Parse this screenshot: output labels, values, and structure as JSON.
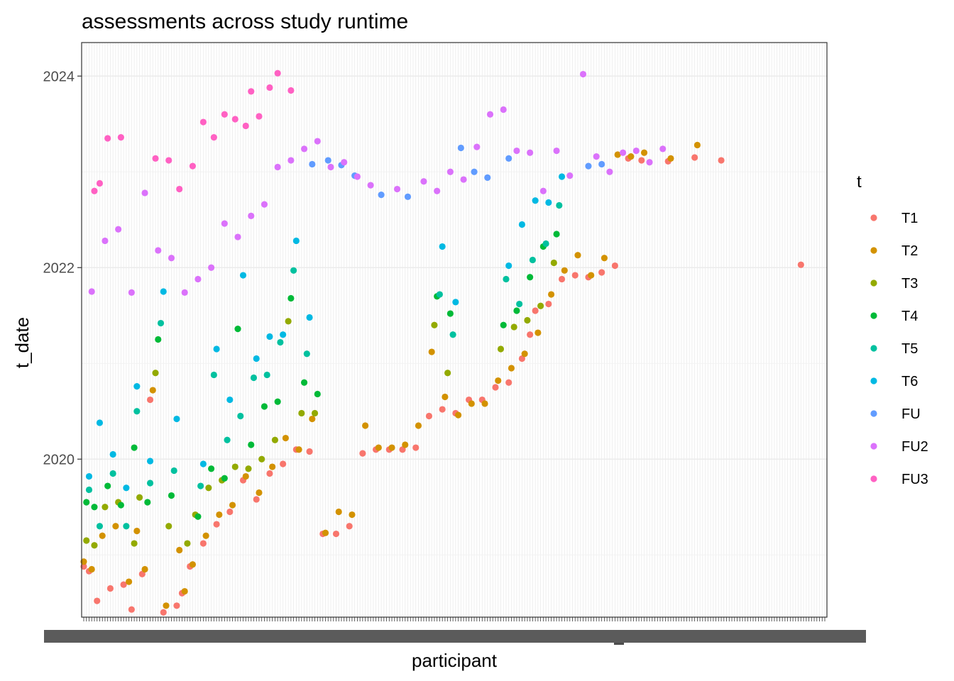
{
  "chart_data": {
    "type": "scatter",
    "title": "assessments across study runtime",
    "xlabel": "participant",
    "ylabel": "t_date",
    "y_ticks": [
      "2020",
      "2022",
      "2024"
    ],
    "y_tick_values": [
      2020,
      2022,
      2024
    ],
    "ylim": [
      2018.35,
      2024.35
    ],
    "x_axis_labels_overlapping": true,
    "x_count": 170,
    "grid": true,
    "legend": {
      "title": "t",
      "placement": "right",
      "entries": [
        {
          "name": "T1",
          "color": "#F8766D"
        },
        {
          "name": "T2",
          "color": "#D39200"
        },
        {
          "name": "T3",
          "color": "#93AA00"
        },
        {
          "name": "T4",
          "color": "#00BA38"
        },
        {
          "name": "T5",
          "color": "#00C19F"
        },
        {
          "name": "T6",
          "color": "#00B9E3"
        },
        {
          "name": "FU",
          "color": "#619CFF"
        },
        {
          "name": "FU2",
          "color": "#DB72FB"
        },
        {
          "name": "FU3",
          "color": "#FF61C3"
        }
      ]
    },
    "series": [
      {
        "name": "T1",
        "points": [
          [
            0,
            2018.88
          ],
          [
            2,
            2018.83
          ],
          [
            5,
            2018.52
          ],
          [
            10,
            2018.65
          ],
          [
            15,
            2018.69
          ],
          [
            18,
            2018.43
          ],
          [
            22,
            2018.8
          ],
          [
            25,
            2020.62
          ],
          [
            30,
            2018.4
          ],
          [
            35,
            2018.47
          ],
          [
            37,
            2018.6
          ],
          [
            40,
            2018.88
          ],
          [
            45,
            2019.12
          ],
          [
            50,
            2019.32
          ],
          [
            55,
            2019.45
          ],
          [
            60,
            2019.78
          ],
          [
            65,
            2019.58
          ],
          [
            70,
            2019.85
          ],
          [
            75,
            2019.95
          ],
          [
            80,
            2020.1
          ],
          [
            85,
            2020.08
          ],
          [
            90,
            2019.22
          ],
          [
            95,
            2019.22
          ],
          [
            100,
            2019.3
          ],
          [
            105,
            2020.06
          ],
          [
            110,
            2020.1
          ],
          [
            115,
            2020.1
          ],
          [
            120,
            2020.1
          ],
          [
            125,
            2020.12
          ],
          [
            130,
            2020.45
          ],
          [
            135,
            2020.52
          ],
          [
            140,
            2020.48
          ],
          [
            145,
            2020.62
          ],
          [
            150,
            2020.62
          ],
          [
            155,
            2020.75
          ],
          [
            160,
            2020.8
          ],
          [
            165,
            2021.05
          ],
          [
            168,
            2021.3
          ],
          [
            170,
            2021.55
          ],
          [
            175,
            2021.62
          ],
          [
            180,
            2021.88
          ],
          [
            185,
            2021.92
          ],
          [
            190,
            2021.9
          ],
          [
            195,
            2021.95
          ],
          [
            200,
            2022.02
          ],
          [
            205,
            2023.14
          ],
          [
            210,
            2023.12
          ],
          [
            220,
            2023.11
          ],
          [
            230,
            2023.15
          ],
          [
            240,
            2023.12
          ],
          [
            270,
            2022.03
          ]
        ]
      },
      {
        "name": "T2",
        "points": [
          [
            0,
            2018.93
          ],
          [
            3,
            2018.85
          ],
          [
            7,
            2019.2
          ],
          [
            12,
            2019.3
          ],
          [
            17,
            2018.72
          ],
          [
            20,
            2019.25
          ],
          [
            23,
            2018.85
          ],
          [
            26,
            2020.72
          ],
          [
            31,
            2018.47
          ],
          [
            36,
            2019.05
          ],
          [
            38,
            2018.62
          ],
          [
            41,
            2018.9
          ],
          [
            46,
            2019.2
          ],
          [
            51,
            2019.42
          ],
          [
            56,
            2019.52
          ],
          [
            61,
            2019.82
          ],
          [
            66,
            2019.65
          ],
          [
            71,
            2019.92
          ],
          [
            76,
            2020.22
          ],
          [
            81,
            2020.1
          ],
          [
            86,
            2020.42
          ],
          [
            91,
            2019.23
          ],
          [
            96,
            2019.45
          ],
          [
            101,
            2019.42
          ],
          [
            106,
            2020.35
          ],
          [
            111,
            2020.12
          ],
          [
            116,
            2020.12
          ],
          [
            121,
            2020.15
          ],
          [
            126,
            2020.35
          ],
          [
            131,
            2021.12
          ],
          [
            136,
            2020.65
          ],
          [
            141,
            2020.46
          ],
          [
            146,
            2020.58
          ],
          [
            151,
            2020.58
          ],
          [
            156,
            2020.82
          ],
          [
            161,
            2020.95
          ],
          [
            166,
            2021.1
          ],
          [
            171,
            2021.32
          ],
          [
            176,
            2021.72
          ],
          [
            181,
            2021.97
          ],
          [
            186,
            2022.13
          ],
          [
            191,
            2021.92
          ],
          [
            196,
            2022.1
          ],
          [
            201,
            2023.18
          ],
          [
            206,
            2023.16
          ],
          [
            211,
            2023.2
          ],
          [
            221,
            2023.14
          ],
          [
            231,
            2023.28
          ]
        ]
      },
      {
        "name": "T3",
        "points": [
          [
            1,
            2019.15
          ],
          [
            4,
            2019.1
          ],
          [
            8,
            2019.5
          ],
          [
            13,
            2019.55
          ],
          [
            19,
            2019.12
          ],
          [
            21,
            2019.6
          ],
          [
            27,
            2020.9
          ],
          [
            32,
            2019.3
          ],
          [
            39,
            2019.12
          ],
          [
            42,
            2019.42
          ],
          [
            47,
            2019.7
          ],
          [
            52,
            2019.78
          ],
          [
            57,
            2019.92
          ],
          [
            62,
            2019.9
          ],
          [
            67,
            2020.0
          ],
          [
            72,
            2020.2
          ],
          [
            77,
            2021.44
          ],
          [
            82,
            2020.48
          ],
          [
            87,
            2020.48
          ],
          [
            132,
            2021.4
          ],
          [
            137,
            2020.9
          ],
          [
            157,
            2021.15
          ],
          [
            162,
            2021.38
          ],
          [
            167,
            2021.45
          ],
          [
            172,
            2021.6
          ],
          [
            177,
            2022.05
          ]
        ]
      },
      {
        "name": "T4",
        "points": [
          [
            1,
            2019.55
          ],
          [
            4,
            2019.5
          ],
          [
            9,
            2019.72
          ],
          [
            14,
            2019.52
          ],
          [
            19,
            2020.12
          ],
          [
            24,
            2019.55
          ],
          [
            28,
            2021.25
          ],
          [
            33,
            2019.62
          ],
          [
            43,
            2019.4
          ],
          [
            48,
            2019.9
          ],
          [
            53,
            2019.8
          ],
          [
            58,
            2021.36
          ],
          [
            63,
            2020.15
          ],
          [
            68,
            2020.55
          ],
          [
            73,
            2020.6
          ],
          [
            78,
            2021.68
          ],
          [
            83,
            2020.8
          ],
          [
            88,
            2020.68
          ],
          [
            133,
            2021.7
          ],
          [
            138,
            2021.52
          ],
          [
            158,
            2021.4
          ],
          [
            163,
            2021.55
          ],
          [
            168,
            2021.9
          ],
          [
            173,
            2022.22
          ],
          [
            178,
            2022.35
          ]
        ]
      },
      {
        "name": "T5",
        "points": [
          [
            2,
            2019.68
          ],
          [
            6,
            2019.3
          ],
          [
            11,
            2019.85
          ],
          [
            16,
            2019.3
          ],
          [
            20,
            2020.5
          ],
          [
            25,
            2019.75
          ],
          [
            29,
            2021.42
          ],
          [
            34,
            2019.88
          ],
          [
            44,
            2019.72
          ],
          [
            49,
            2020.88
          ],
          [
            54,
            2020.2
          ],
          [
            59,
            2020.45
          ],
          [
            64,
            2020.85
          ],
          [
            69,
            2020.88
          ],
          [
            74,
            2021.22
          ],
          [
            79,
            2021.97
          ],
          [
            84,
            2021.1
          ],
          [
            134,
            2021.72
          ],
          [
            139,
            2021.3
          ],
          [
            159,
            2021.88
          ],
          [
            164,
            2021.62
          ],
          [
            169,
            2022.08
          ],
          [
            174,
            2022.25
          ],
          [
            179,
            2022.65
          ]
        ]
      },
      {
        "name": "T6",
        "points": [
          [
            2,
            2019.82
          ],
          [
            6,
            2020.38
          ],
          [
            11,
            2020.05
          ],
          [
            16,
            2019.7
          ],
          [
            20,
            2020.76
          ],
          [
            25,
            2019.98
          ],
          [
            30,
            2021.75
          ],
          [
            35,
            2020.42
          ],
          [
            45,
            2019.95
          ],
          [
            50,
            2021.15
          ],
          [
            55,
            2020.62
          ],
          [
            60,
            2021.92
          ],
          [
            65,
            2021.05
          ],
          [
            70,
            2021.28
          ],
          [
            75,
            2021.3
          ],
          [
            80,
            2022.28
          ],
          [
            85,
            2021.48
          ],
          [
            135,
            2022.22
          ],
          [
            140,
            2021.64
          ],
          [
            160,
            2022.02
          ],
          [
            165,
            2022.45
          ],
          [
            170,
            2022.7
          ],
          [
            175,
            2022.68
          ],
          [
            180,
            2022.95
          ]
        ]
      },
      {
        "name": "FU",
        "points": [
          [
            86,
            2023.08
          ],
          [
            92,
            2023.12
          ],
          [
            97,
            2023.07
          ],
          [
            102,
            2022.96
          ],
          [
            112,
            2022.76
          ],
          [
            122,
            2022.74
          ],
          [
            142,
            2023.25
          ],
          [
            147,
            2023.0
          ],
          [
            152,
            2022.94
          ],
          [
            160,
            2023.14
          ],
          [
            190,
            2023.06
          ],
          [
            195,
            2023.08
          ]
        ]
      },
      {
        "name": "FU2",
        "points": [
          [
            3,
            2021.75
          ],
          [
            8,
            2022.28
          ],
          [
            13,
            2022.4
          ],
          [
            18,
            2021.74
          ],
          [
            23,
            2022.78
          ],
          [
            28,
            2022.18
          ],
          [
            33,
            2022.1
          ],
          [
            38,
            2021.74
          ],
          [
            43,
            2021.88
          ],
          [
            48,
            2022.0
          ],
          [
            53,
            2022.46
          ],
          [
            58,
            2022.32
          ],
          [
            63,
            2022.54
          ],
          [
            68,
            2022.66
          ],
          [
            73,
            2023.05
          ],
          [
            78,
            2023.12
          ],
          [
            83,
            2023.24
          ],
          [
            88,
            2023.32
          ],
          [
            93,
            2023.05
          ],
          [
            98,
            2023.1
          ],
          [
            103,
            2022.95
          ],
          [
            108,
            2022.86
          ],
          [
            118,
            2022.82
          ],
          [
            128,
            2022.9
          ],
          [
            133,
            2022.8
          ],
          [
            138,
            2023.0
          ],
          [
            143,
            2022.92
          ],
          [
            148,
            2023.26
          ],
          [
            153,
            2023.6
          ],
          [
            158,
            2023.65
          ],
          [
            163,
            2023.22
          ],
          [
            168,
            2023.2
          ],
          [
            173,
            2022.8
          ],
          [
            178,
            2023.22
          ],
          [
            183,
            2022.96
          ],
          [
            188,
            2024.02
          ],
          [
            193,
            2023.16
          ],
          [
            198,
            2023.0
          ],
          [
            203,
            2023.2
          ],
          [
            208,
            2023.22
          ],
          [
            213,
            2023.1
          ],
          [
            218,
            2023.24
          ]
        ]
      },
      {
        "name": "FU3",
        "points": [
          [
            4,
            2022.8
          ],
          [
            6,
            2022.88
          ],
          [
            9,
            2023.35
          ],
          [
            14,
            2023.36
          ],
          [
            27,
            2023.14
          ],
          [
            32,
            2023.12
          ],
          [
            36,
            2022.82
          ],
          [
            41,
            2023.06
          ],
          [
            45,
            2023.52
          ],
          [
            49,
            2023.36
          ],
          [
            53,
            2023.6
          ],
          [
            57,
            2023.55
          ],
          [
            61,
            2023.48
          ],
          [
            63,
            2023.84
          ],
          [
            66,
            2023.58
          ],
          [
            70,
            2023.88
          ],
          [
            73,
            2024.03
          ],
          [
            78,
            2023.85
          ]
        ]
      }
    ]
  }
}
